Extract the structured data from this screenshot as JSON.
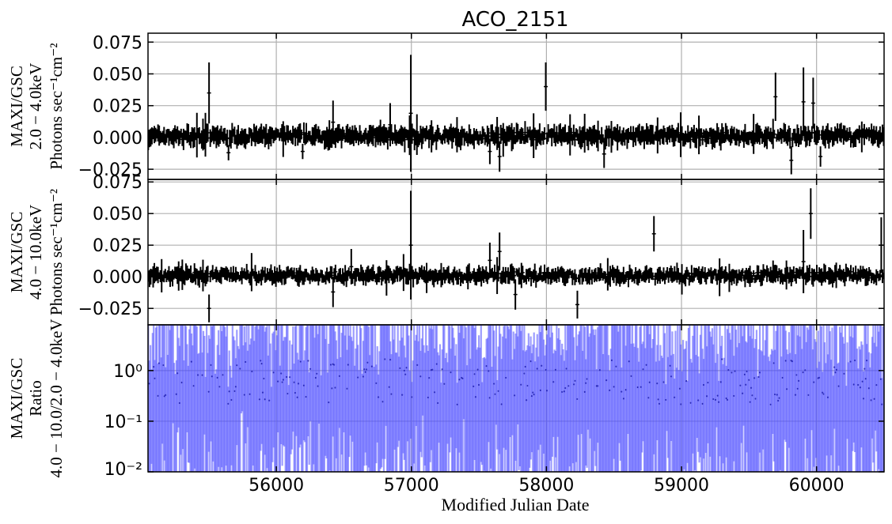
{
  "chart_data": {
    "title": "ACO_2151",
    "xlabel": "Modified Julian Date",
    "xlim": [
      55050,
      60500
    ],
    "x_ticks": [
      56000,
      57000,
      58000,
      59000,
      60000
    ],
    "x_tick_labels": [
      "56000",
      "57000",
      "58000",
      "59000",
      "60000"
    ],
    "grid": true,
    "panels": [
      {
        "type": "errorbar",
        "ylabel_lines": [
          "MAXI/GSC",
          "2.0 − 4.0keV",
          "Photons sec⁻¹cm⁻²"
        ],
        "ylim": [
          -0.033,
          0.082
        ],
        "y_ticks": [
          -0.025,
          0.0,
          0.025,
          0.05,
          0.075
        ],
        "y_tick_labels": [
          "−0.025",
          "0.000",
          "0.025",
          "0.050",
          "0.075"
        ],
        "series": [
          {
            "color": "#000000",
            "typical_value": 0.001,
            "typical_error": 0.006
          }
        ],
        "notable_points": [
          {
            "x": 55500,
            "y": 0.035,
            "err": 0.024
          },
          {
            "x": 55650,
            "y": -0.012,
            "err": 0.006
          },
          {
            "x": 56200,
            "y": -0.011,
            "err": 0.006
          },
          {
            "x": 56420,
            "y": 0.012,
            "err": 0.017
          },
          {
            "x": 56840,
            "y": 0.01,
            "err": 0.017
          },
          {
            "x": 57000,
            "y": 0.019,
            "err": 0.046
          },
          {
            "x": 57580,
            "y": -0.011,
            "err": 0.01
          },
          {
            "x": 57650,
            "y": -0.015,
            "err": 0.012
          },
          {
            "x": 58000,
            "y": 0.04,
            "err": 0.019
          },
          {
            "x": 58430,
            "y": -0.013,
            "err": 0.011
          },
          {
            "x": 59700,
            "y": 0.032,
            "err": 0.019
          },
          {
            "x": 59810,
            "y": -0.018,
            "err": 0.011
          },
          {
            "x": 59900,
            "y": 0.028,
            "err": 0.027
          },
          {
            "x": 59980,
            "y": 0.027,
            "err": 0.02
          },
          {
            "x": 60030,
            "y": -0.015,
            "err": 0.008
          }
        ]
      },
      {
        "type": "errorbar",
        "ylabel_lines": [
          "MAXI/GSC",
          "4.0 − 10.0keV",
          "Photons sec⁻¹cm⁻²"
        ],
        "ylim": [
          -0.038,
          0.077
        ],
        "y_ticks": [
          -0.025,
          0.0,
          0.025,
          0.05,
          0.075
        ],
        "y_tick_labels": [
          "−0.025",
          "0.000",
          "0.025",
          "0.050",
          "0.075"
        ],
        "series": [
          {
            "color": "#000000",
            "typical_value": 0.001,
            "typical_error": 0.005
          }
        ],
        "notable_points": [
          {
            "x": 55500,
            "y": -0.025,
            "err": 0.011
          },
          {
            "x": 56420,
            "y": -0.012,
            "err": 0.012
          },
          {
            "x": 56560,
            "y": 0.008,
            "err": 0.014
          },
          {
            "x": 57000,
            "y": 0.025,
            "err": 0.043
          },
          {
            "x": 57580,
            "y": 0.013,
            "err": 0.014
          },
          {
            "x": 57650,
            "y": 0.02,
            "err": 0.015
          },
          {
            "x": 57770,
            "y": -0.014,
            "err": 0.012
          },
          {
            "x": 58230,
            "y": -0.022,
            "err": 0.011
          },
          {
            "x": 58800,
            "y": 0.034,
            "err": 0.014
          },
          {
            "x": 59900,
            "y": 0.012,
            "err": 0.025
          },
          {
            "x": 59960,
            "y": 0.05,
            "err": 0.02
          },
          {
            "x": 60480,
            "y": 0.025,
            "err": 0.022
          }
        ]
      },
      {
        "type": "errorbar",
        "scale": "log",
        "ylabel_lines": [
          "MAXI/GSC",
          "Ratio",
          "4.0 − 10.0/2.0 − 4.0keV"
        ],
        "ylim": [
          0.01,
          8
        ],
        "y_ticks": [
          0.01,
          0.1,
          1
        ],
        "y_tick_labels": [
          "10⁻²",
          "10⁻¹",
          "10⁰"
        ],
        "series": [
          {
            "color": "#4a4aff",
            "alpha": 0.55,
            "typical_value": 0.6
          }
        ]
      }
    ]
  }
}
